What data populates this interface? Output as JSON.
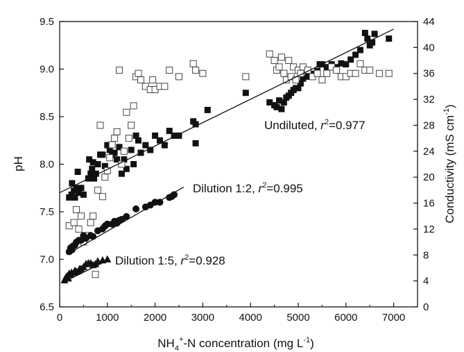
{
  "chart_data": {
    "type": "scatter",
    "x": {
      "label_parts": {
        "pre": "NH",
        "sub": "4",
        "sup": "+",
        "post": "-N concentration (mg L",
        "unit_sup": "-1",
        "close": ")"
      },
      "range": [
        0,
        7500
      ],
      "ticks": [
        0,
        1000,
        2000,
        3000,
        4000,
        5000,
        6000,
        7000
      ],
      "tick_labels": [
        "0",
        "1000",
        "2000",
        "3000",
        "4000",
        "5000",
        "6000",
        "7000"
      ]
    },
    "y_left": {
      "label": "pH",
      "range": [
        6.5,
        9.5
      ],
      "ticks": [
        6.5,
        7.0,
        7.5,
        8.0,
        8.5,
        9.0,
        9.5
      ],
      "tick_labels": [
        "6.5",
        "7.0",
        "7.5",
        "8.0",
        "8.5",
        "9.0",
        "9.5"
      ]
    },
    "y_right": {
      "label_parts": {
        "pre": "Conductivity (mS cm",
        "sup": "-1",
        "close": ")"
      },
      "range": [
        0,
        44
      ],
      "ticks": [
        0,
        4,
        8,
        12,
        16,
        20,
        24,
        28,
        32,
        36,
        40,
        44
      ],
      "tick_labels": [
        "0",
        "4",
        "8",
        "12",
        "16",
        "20",
        "24",
        "28",
        "32",
        "36",
        "40",
        "44"
      ]
    },
    "grid": false,
    "legend": "none",
    "annotations": [
      {
        "id": "undiluted",
        "prefix": "Undiluted, ",
        "r": "r",
        "sup": "2",
        "value": "=0.977"
      },
      {
        "id": "d12",
        "prefix": "Dilution 1:2, ",
        "r": "r",
        "sup": "2",
        "value": "=0.995"
      },
      {
        "id": "d15",
        "prefix": "Dilution 1:5, ",
        "r": "r",
        "sup": "2",
        "value": "=0.928"
      }
    ],
    "series": [
      {
        "marker": "filled-square",
        "axis": "left",
        "points": [
          [
            200,
            7.65
          ],
          [
            250,
            7.68
          ],
          [
            260,
            7.8
          ],
          [
            300,
            7.72
          ],
          [
            320,
            7.65
          ],
          [
            350,
            7.75
          ],
          [
            380,
            7.92
          ],
          [
            400,
            7.7
          ],
          [
            450,
            7.75
          ],
          [
            500,
            7.68
          ],
          [
            600,
            7.85
          ],
          [
            620,
            8.05
          ],
          [
            650,
            7.9
          ],
          [
            680,
            7.95
          ],
          [
            700,
            8.02
          ],
          [
            720,
            7.85
          ],
          [
            760,
            7.9
          ],
          [
            800,
            8.0
          ],
          [
            850,
            8.1
          ],
          [
            900,
            8.1
          ],
          [
            950,
            7.98
          ],
          [
            1000,
            8.2
          ],
          [
            1050,
            8.15
          ],
          [
            1100,
            8.1
          ],
          [
            1150,
            8.12
          ],
          [
            1200,
            8.05
          ],
          [
            1250,
            8.18
          ],
          [
            1300,
            7.9
          ],
          [
            1350,
            8.05
          ],
          [
            1400,
            7.95
          ],
          [
            1500,
            8.15
          ],
          [
            1550,
            8.0
          ],
          [
            1600,
            8.3
          ],
          [
            1650,
            8.25
          ],
          [
            1700,
            8.12
          ],
          [
            1800,
            8.2
          ],
          [
            1900,
            8.15
          ],
          [
            2000,
            8.3
          ],
          [
            2100,
            8.25
          ],
          [
            2200,
            8.2
          ],
          [
            2300,
            8.35
          ],
          [
            2400,
            8.3
          ],
          [
            2500,
            8.3
          ],
          [
            2800,
            8.45
          ],
          [
            2850,
            8.42
          ],
          [
            2850,
            8.22
          ],
          [
            3100,
            8.57
          ],
          [
            3900,
            8.75
          ],
          [
            4400,
            8.65
          ],
          [
            4500,
            8.62
          ],
          [
            4550,
            8.6
          ],
          [
            4600,
            8.67
          ],
          [
            4650,
            8.58
          ],
          [
            4700,
            8.65
          ],
          [
            4750,
            8.7
          ],
          [
            4800,
            8.72
          ],
          [
            4850,
            8.75
          ],
          [
            4900,
            8.78
          ],
          [
            4950,
            8.8
          ],
          [
            5000,
            8.8
          ],
          [
            5050,
            8.85
          ],
          [
            5100,
            8.9
          ],
          [
            5200,
            8.92
          ],
          [
            5300,
            8.95
          ],
          [
            5400,
            8.98
          ],
          [
            5450,
            9.05
          ],
          [
            5500,
            9.05
          ],
          [
            5600,
            9.02
          ],
          [
            5700,
            9.05
          ],
          [
            5800,
            9.02
          ],
          [
            5900,
            9.06
          ],
          [
            6000,
            9.05
          ],
          [
            6100,
            9.1
          ],
          [
            6200,
            9.15
          ],
          [
            6300,
            9.2
          ],
          [
            6400,
            9.38
          ],
          [
            6450,
            9.32
          ],
          [
            6500,
            9.25
          ],
          [
            6550,
            9.28
          ],
          [
            6600,
            9.37
          ],
          [
            6900,
            9.32
          ]
        ]
      },
      {
        "marker": "open-square",
        "axis": "right",
        "points": [
          [
            200,
            12.5
          ],
          [
            300,
            13
          ],
          [
            350,
            15
          ],
          [
            400,
            12
          ],
          [
            450,
            14
          ],
          [
            500,
            10
          ],
          [
            600,
            11
          ],
          [
            650,
            13
          ],
          [
            700,
            14
          ],
          [
            750,
            5
          ],
          [
            800,
            18
          ],
          [
            850,
            28
          ],
          [
            900,
            17
          ],
          [
            950,
            20
          ],
          [
            1000,
            21
          ],
          [
            1050,
            23
          ],
          [
            1100,
            25
          ],
          [
            1150,
            26
          ],
          [
            1200,
            27
          ],
          [
            1250,
            36.5
          ],
          [
            1300,
            22
          ],
          [
            1350,
            24
          ],
          [
            1400,
            30
          ],
          [
            1450,
            26
          ],
          [
            1500,
            28
          ],
          [
            1550,
            31
          ],
          [
            1600,
            35.5
          ],
          [
            1650,
            36
          ],
          [
            1700,
            35
          ],
          [
            1800,
            34
          ],
          [
            1900,
            33.5
          ],
          [
            1950,
            35
          ],
          [
            2000,
            33.5
          ],
          [
            2100,
            34
          ],
          [
            2200,
            34
          ],
          [
            2300,
            36.5
          ],
          [
            2500,
            35.5
          ],
          [
            2800,
            37.5
          ],
          [
            2850,
            36.5
          ],
          [
            3000,
            36
          ],
          [
            3900,
            35.5
          ],
          [
            4400,
            39
          ],
          [
            4500,
            38
          ],
          [
            4550,
            36.5
          ],
          [
            4600,
            37
          ],
          [
            4650,
            38.5
          ],
          [
            4700,
            36
          ],
          [
            4750,
            35
          ],
          [
            4800,
            38
          ],
          [
            4850,
            35.5
          ],
          [
            4900,
            37
          ],
          [
            4950,
            35
          ],
          [
            5000,
            36.5
          ],
          [
            5050,
            36
          ],
          [
            5100,
            37
          ],
          [
            5200,
            36.5
          ],
          [
            5300,
            35.5
          ],
          [
            5400,
            36
          ],
          [
            5500,
            35
          ],
          [
            5600,
            36
          ],
          [
            5700,
            37
          ],
          [
            5800,
            36.5
          ],
          [
            5900,
            35.5
          ],
          [
            6000,
            35.5
          ],
          [
            6100,
            36
          ],
          [
            6200,
            36
          ],
          [
            6300,
            37.5
          ],
          [
            6400,
            36.5
          ],
          [
            6500,
            36.5
          ],
          [
            6700,
            36
          ],
          [
            6900,
            36
          ]
        ]
      },
      {
        "marker": "filled-circle",
        "axis": "left",
        "points": [
          [
            200,
            7.08
          ],
          [
            230,
            7.12
          ],
          [
            260,
            7.1
          ],
          [
            280,
            7.14
          ],
          [
            320,
            7.15
          ],
          [
            350,
            7.18
          ],
          [
            400,
            7.2
          ],
          [
            450,
            7.2
          ],
          [
            500,
            7.25
          ],
          [
            550,
            7.22
          ],
          [
            650,
            7.25
          ],
          [
            700,
            7.24
          ],
          [
            800,
            7.3
          ],
          [
            900,
            7.32
          ],
          [
            950,
            7.35
          ],
          [
            1000,
            7.37
          ],
          [
            1100,
            7.37
          ],
          [
            1150,
            7.4
          ],
          [
            1200,
            7.38
          ],
          [
            1250,
            7.41
          ],
          [
            1300,
            7.42
          ],
          [
            1400,
            7.45
          ],
          [
            1600,
            7.53
          ],
          [
            1800,
            7.55
          ],
          [
            1900,
            7.57
          ],
          [
            2000,
            7.6
          ],
          [
            2100,
            7.6
          ],
          [
            2300,
            7.65
          ],
          [
            2350,
            7.66
          ],
          [
            2400,
            7.68
          ]
        ]
      },
      {
        "marker": "filled-triangle",
        "axis": "left",
        "points": [
          [
            100,
            6.78
          ],
          [
            120,
            6.8
          ],
          [
            150,
            6.82
          ],
          [
            180,
            6.8
          ],
          [
            200,
            6.85
          ],
          [
            230,
            6.84
          ],
          [
            250,
            6.86
          ],
          [
            300,
            6.86
          ],
          [
            320,
            6.88
          ],
          [
            350,
            6.87
          ],
          [
            400,
            6.88
          ],
          [
            420,
            6.9
          ],
          [
            450,
            6.9
          ],
          [
            500,
            6.92
          ],
          [
            550,
            6.95
          ],
          [
            600,
            6.96
          ],
          [
            650,
            6.96
          ],
          [
            700,
            6.94
          ],
          [
            750,
            6.95
          ],
          [
            800,
            6.98
          ],
          [
            900,
            6.99
          ],
          [
            1000,
            7.0
          ]
        ]
      }
    ],
    "fit_lines": [
      {
        "annotation": "undiluted",
        "x": [
          0,
          7000
        ],
        "y": [
          7.7,
          9.42
        ]
      },
      {
        "annotation": "d12",
        "x": [
          150,
          2600
        ],
        "y": [
          7.05,
          7.76
        ]
      },
      {
        "annotation": "d15",
        "x": [
          80,
          1050
        ],
        "y": [
          6.76,
          7.0
        ]
      }
    ]
  }
}
